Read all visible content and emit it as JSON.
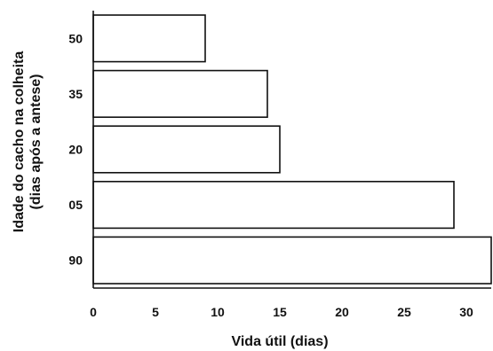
{
  "chart_data": {
    "type": "bar",
    "orientation": "horizontal",
    "categories": [
      "50",
      "35",
      "20",
      "05",
      "90"
    ],
    "values": [
      9,
      14,
      15,
      29,
      32
    ],
    "xlabel": "Vida útil (dias)",
    "ylabel_lines": [
      "Idade do cacho na colheita",
      "(dias após a antese)"
    ],
    "xticks": [
      0,
      5,
      10,
      15,
      20,
      25,
      30
    ],
    "xlim": [
      0,
      32
    ],
    "grid": false,
    "colors": {
      "bar_fill": "#ffffff",
      "bar_stroke": "#111111"
    }
  }
}
